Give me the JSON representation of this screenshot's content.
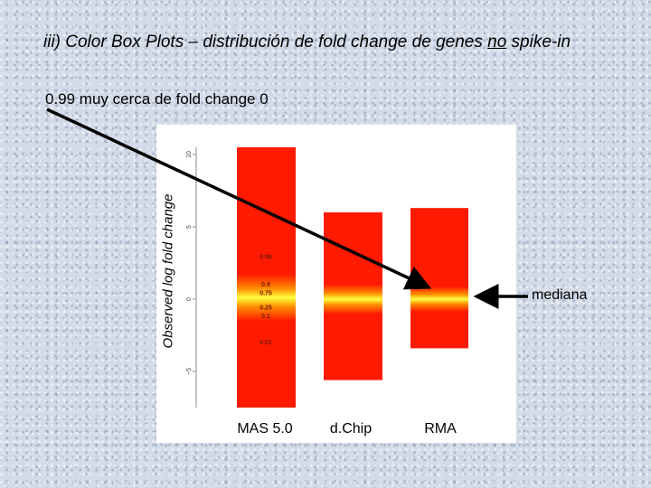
{
  "slide": {
    "title_prefix": "iii) Color Box Plots – distribución de fold change de genes ",
    "title_underlined": "no",
    "title_suffix": " spike-in",
    "note": "0.99 muy cerca de fold change 0",
    "mediana_label": "mediana"
  },
  "chart_data": {
    "type": "box",
    "title": "",
    "xlabel": "",
    "ylabel": "Observed log fold change",
    "ylim": [
      -7.5,
      10.5
    ],
    "yticks": [
      "10",
      "5",
      "0",
      "−5"
    ],
    "ytick_values": [
      10,
      5,
      0,
      -5
    ],
    "categories": [
      "MAS 5.0",
      "d.Chip",
      "RMA"
    ],
    "ranges": [
      {
        "category": "MAS 5.0",
        "min": -7.5,
        "max": 10.5,
        "median": 0.1
      },
      {
        "category": "d.Chip",
        "min": -5.6,
        "max": 6.0,
        "median": 0.0
      },
      {
        "category": "RMA",
        "min": -3.4,
        "max": 6.3,
        "median": 0.0
      }
    ],
    "quantile_labels": [
      {
        "label": "0.99",
        "y": 2.9
      },
      {
        "label": "0.9",
        "y": 1.0
      },
      {
        "label": "0.75",
        "y": 0.4
      },
      {
        "label": "0.25",
        "y": -0.6
      },
      {
        "label": "0.1",
        "y": -1.2
      },
      {
        "label": "0.01",
        "y": -3.0
      }
    ],
    "colors": {
      "outer": "#ff1a00",
      "mid": "#ff8c00",
      "center": "#ffff40"
    }
  }
}
